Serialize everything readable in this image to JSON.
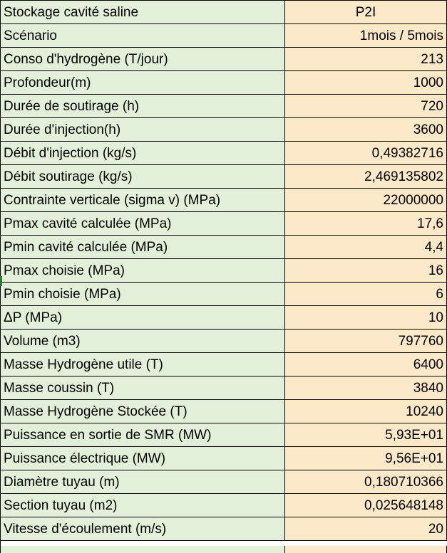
{
  "sheet": {
    "rows": [
      {
        "label": "Stockage cavité saline",
        "value": "P2I"
      },
      {
        "label": "Scénario",
        "value": "1mois / 5mois"
      },
      {
        "label": "Conso d'hydrogène (T/jour)",
        "value": "213"
      },
      {
        "label": "Profondeur(m)",
        "value": "1000"
      },
      {
        "label": "Durée de soutirage (h)",
        "value": "720"
      },
      {
        "label": "Durée d'injection(h)",
        "value": "3600"
      },
      {
        "label": "Débit d'injection (kg/s)",
        "value": "0,49382716"
      },
      {
        "label": "Débit soutirage (kg/s)",
        "value": "2,469135802"
      },
      {
        "label": "Contrainte verticale (sigma v) (MPa)",
        "value": "22000000"
      },
      {
        "label": "Pmax cavité calculée (MPa)",
        "value": "17,6"
      },
      {
        "label": "Pmin cavité calculée (MPa)",
        "value": "4,4"
      },
      {
        "label": "Pmax choisie (MPa)",
        "value": "16"
      },
      {
        "label": "Pmin choisie (MPa)",
        "value": "6"
      },
      {
        "label": "ΔP (MPa)",
        "value": "10"
      },
      {
        "label": "Volume (m3)",
        "value": "797760"
      },
      {
        "label": "Masse Hydrogène utile (T)",
        "value": "6400"
      },
      {
        "label": "Masse coussin (T)",
        "value": "3840"
      },
      {
        "label": "Masse Hydrogène Stockée (T)",
        "value": "10240"
      },
      {
        "label": "Puissance en sortie de SMR (MW)",
        "value": "5,93E+01"
      },
      {
        "label": "Puissance électrique (MW)",
        "value": "9,56E+01"
      },
      {
        "label": "Diamètre tuyau (m)",
        "value": "0,180710366"
      },
      {
        "label": "Section tuyau (m2)",
        "value": "0,025648148"
      },
      {
        "label": "Vitesse d'écoulement (m/s)",
        "value": "20"
      }
    ]
  }
}
